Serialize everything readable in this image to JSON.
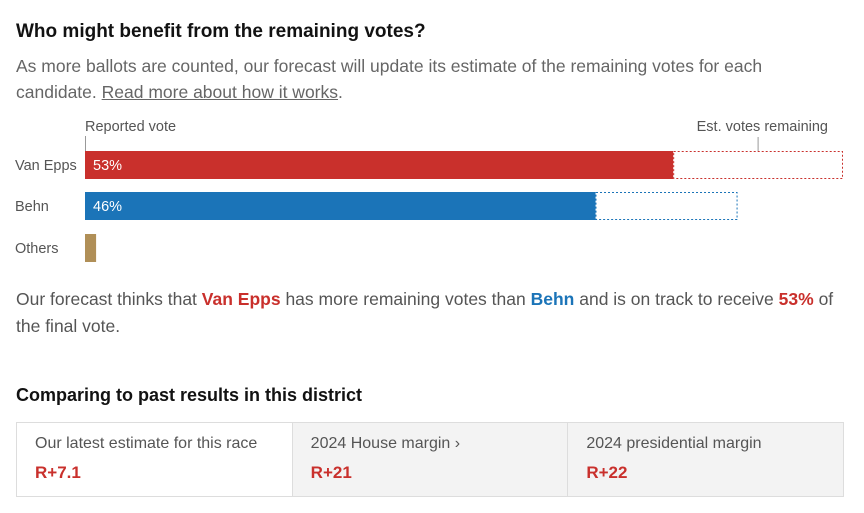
{
  "header": {
    "title": "Who might benefit from the remaining votes?",
    "subtitle": "As more ballots are counted, our forecast will update its estimate of the remaining votes for each candidate.",
    "link": "Read more about how it works",
    "link_end": "."
  },
  "chart_data": {
    "type": "bar",
    "orientation": "horizontal",
    "stacked": true,
    "categories": [
      "Van Epps",
      "Behn",
      "Others"
    ],
    "series": [
      {
        "name": "Reported vote",
        "colors": [
          "#c9302c",
          "#1b74b8",
          "#b08f57"
        ],
        "values": [
          53,
          46,
          1
        ],
        "value_labels": [
          "53%",
          "46%",
          null
        ]
      },
      {
        "name": "Est. votes remaining",
        "style": "dashed",
        "colors": [
          "#c9302c",
          "#1b74b8",
          "#b08f57"
        ],
        "values": [
          15.3,
          12.8,
          0
        ]
      }
    ]
  },
  "forecast": {
    "intro": "Our forecast thinks that",
    "leader": "Van Epps",
    "middle": "has more remaining votes than",
    "trailer": "Behn",
    "outro": "and is on track to receive",
    "share": "53%",
    "end": "of the final vote."
  },
  "comparison": {
    "title": "Comparing to past results in this district",
    "cards": [
      {
        "label": "Our latest estimate for this race",
        "value": "R+7.1"
      },
      {
        "label": "2024 House margin ›",
        "value": "R+21"
      },
      {
        "label": "2024 presidential margin",
        "value": "R+22"
      }
    ]
  }
}
